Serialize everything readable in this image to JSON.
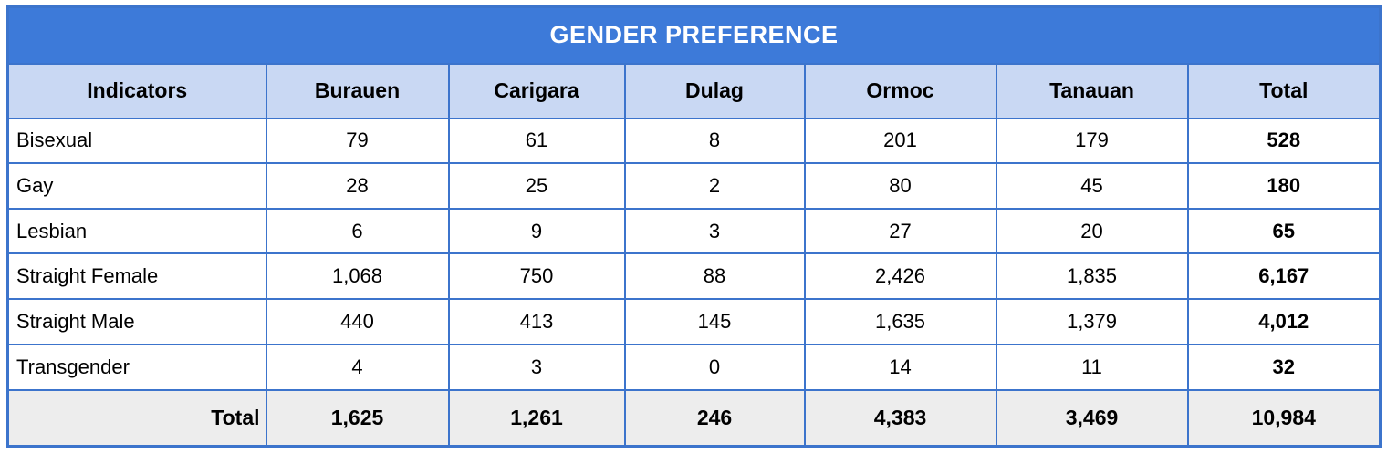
{
  "chart_data": {
    "type": "table",
    "title": "GENDER PREFERENCE",
    "columns": [
      "Indicators",
      "Burauen",
      "Carigara",
      "Dulag",
      "Ormoc",
      "Tanauan",
      "Total"
    ],
    "rows": [
      {
        "indicator": "Bisexual",
        "values": [
          "79",
          "61",
          "8",
          "201",
          "179"
        ],
        "total": "528"
      },
      {
        "indicator": "Gay",
        "values": [
          "28",
          "25",
          "2",
          "80",
          "45"
        ],
        "total": "180"
      },
      {
        "indicator": "Lesbian",
        "values": [
          "6",
          "9",
          "3",
          "27",
          "20"
        ],
        "total": "65"
      },
      {
        "indicator": "Straight Female",
        "values": [
          "1,068",
          "750",
          "88",
          "2,426",
          "1,835"
        ],
        "total": "6,167"
      },
      {
        "indicator": "Straight Male",
        "values": [
          "440",
          "413",
          "145",
          "1,635",
          "1,379"
        ],
        "total": "4,012"
      },
      {
        "indicator": "Transgender",
        "values": [
          "4",
          "3",
          "0",
          "14",
          "11"
        ],
        "total": "32"
      }
    ],
    "total_row": {
      "label": "Total",
      "values": [
        "1,625",
        "1,261",
        "246",
        "4,383",
        "3,469"
      ],
      "total": "10,984"
    }
  },
  "colors": {
    "title_bar": "#3d7ad9",
    "header_bg": "#c9d8f3",
    "grid_border": "#3c74cc",
    "total_row_bg": "#ededed",
    "title_text": "#ffffff",
    "body_text": "#000000"
  }
}
